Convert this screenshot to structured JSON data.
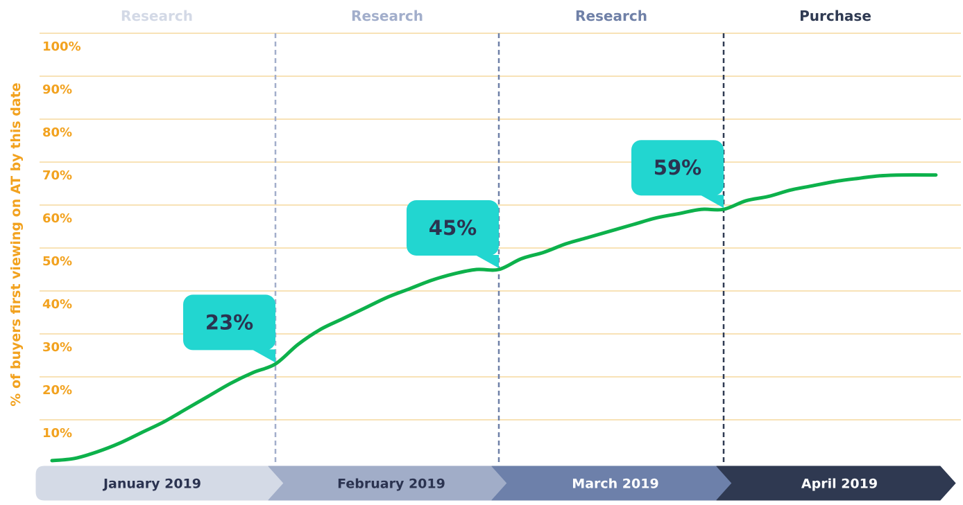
{
  "chart_data": {
    "type": "line",
    "ylabel": "% of buyers first viewing on AT by this date",
    "ylim": [
      0,
      100
    ],
    "y_ticks": [
      "10%",
      "20%",
      "30%",
      "40%",
      "50%",
      "60%",
      "70%",
      "80%",
      "90%",
      "100%"
    ],
    "phases": [
      {
        "label": "Research",
        "color": "#d3d9e6"
      },
      {
        "label": "Research",
        "color": "#a2aecb"
      },
      {
        "label": "Research",
        "color": "#6f80a7"
      },
      {
        "label": "Purchase",
        "color": "#2f3a52"
      }
    ],
    "months": [
      {
        "label": "January 2019",
        "color": "#d4dae6",
        "text_color": "#2b3350"
      },
      {
        "label": "February 2019",
        "color": "#a1adc8",
        "text_color": "#2b3350"
      },
      {
        "label": "March 2019",
        "color": "#6d80aa",
        "text_color": "#ffffff"
      },
      {
        "label": "April 2019",
        "color": "#2f3951",
        "text_color": "#ffffff"
      }
    ],
    "series": [
      {
        "color": "#0db14b",
        "x": [
          0,
          0.1,
          0.2,
          0.3,
          0.4,
          0.5,
          0.6,
          0.7,
          0.8,
          0.9,
          1.0,
          1.1,
          1.2,
          1.3,
          1.4,
          1.5,
          1.6,
          1.7,
          1.8,
          1.9,
          2.0,
          2.1,
          2.2,
          2.3,
          2.4,
          2.5,
          2.6,
          2.7,
          2.8,
          2.9,
          3.0,
          3.1,
          3.2,
          3.3,
          3.4,
          3.5,
          3.6,
          3.7,
          3.8,
          3.95
        ],
        "y": [
          0.5,
          1,
          2.5,
          4.5,
          7,
          9.5,
          12.5,
          15.5,
          18.5,
          21,
          23,
          27.5,
          31,
          33.5,
          36,
          38.5,
          40.5,
          42.5,
          44,
          45,
          45,
          47.5,
          49,
          51,
          52.5,
          54,
          55.5,
          57,
          58,
          59,
          59,
          61,
          62,
          63.5,
          64.5,
          65.5,
          66.2,
          66.8,
          67,
          67
        ]
      }
    ],
    "callouts": [
      {
        "label": "23%",
        "month_index": 1,
        "y": 23
      },
      {
        "label": "45%",
        "month_index": 2,
        "y": 45
      },
      {
        "label": "59%",
        "month_index": 3,
        "y": 59
      }
    ],
    "grid": true,
    "grid_color": "#f2c46d",
    "callout_color": "#22d6d0"
  }
}
